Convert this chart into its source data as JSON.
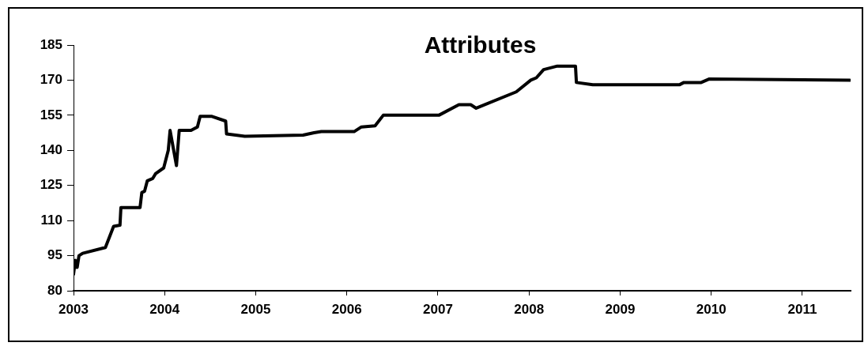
{
  "chart_data": {
    "type": "line",
    "title": "Attributes",
    "x": [
      2003.0,
      2003.02,
      2003.04,
      2003.06,
      2003.1,
      2003.35,
      2003.44,
      2003.51,
      2003.52,
      2003.73,
      2003.75,
      2003.78,
      2003.81,
      2003.87,
      2003.9,
      2003.99,
      2004.04,
      2004.06,
      2004.13,
      2004.16,
      2004.29,
      2004.36,
      2004.39,
      2004.52,
      2004.67,
      2004.68,
      2004.88,
      2005.52,
      2005.64,
      2005.72,
      2006.08,
      2006.16,
      2006.31,
      2006.4,
      2007.01,
      2007.23,
      2007.36,
      2007.42,
      2007.86,
      2008.02,
      2008.08,
      2008.16,
      2008.31,
      2008.51,
      2008.52,
      2008.7,
      2009.65,
      2009.7,
      2009.89,
      2009.98,
      2011.52
    ],
    "series": [
      {
        "color": "#000000",
        "values": [
          87,
          93,
          90,
          95,
          96,
          98.5,
          107.5,
          108,
          115.5,
          115.5,
          122,
          122.5,
          127,
          128,
          130,
          132.5,
          140,
          148.5,
          133.5,
          148.5,
          148.5,
          150,
          154.5,
          154.5,
          152.5,
          147,
          146,
          146.5,
          147.5,
          148,
          148,
          150,
          150.5,
          155,
          155,
          159.5,
          159.5,
          158,
          165,
          170,
          171,
          174.5,
          176,
          176,
          169,
          168,
          168,
          169,
          169,
          170.5,
          170
        ]
      }
    ],
    "xlim": [
      2003,
      2011.53
    ],
    "xticks": [
      2003,
      2004,
      2005,
      2006,
      2007,
      2008,
      2009,
      2010,
      2011
    ],
    "ylim": [
      80,
      185
    ],
    "yticks": [
      80,
      95,
      110,
      125,
      140,
      155,
      170,
      185
    ],
    "grid": false,
    "legend": false,
    "marker": "none",
    "line_style": "solid"
  }
}
